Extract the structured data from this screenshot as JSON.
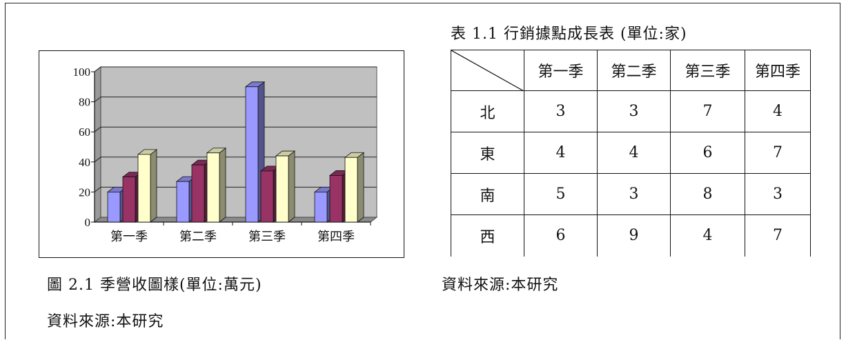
{
  "chart_data": {
    "type": "bar",
    "categories": [
      "第一季",
      "第二季",
      "第三季",
      "第四季"
    ],
    "series": [
      {
        "values": [
          20,
          27,
          90,
          20
        ]
      },
      {
        "values": [
          30,
          38,
          34,
          31
        ]
      },
      {
        "values": [
          45,
          46,
          44,
          43
        ]
      }
    ],
    "yticks": [
      "0",
      "20",
      "40",
      "60",
      "80",
      "100"
    ],
    "ylim": [
      0,
      100
    ],
    "grid": true,
    "three_d": true,
    "colors": [
      "#9999ff",
      "#993366",
      "#ffffcc"
    ],
    "plot_background": "#c0c0c0"
  },
  "figure_caption": "圖 2.1  季營收圖樣(單位:萬元)",
  "figure_source": "資料來源:本研究",
  "table": {
    "title": "表  1.1  行銷據點成長表  (單位:家)",
    "columns": [
      "第一季",
      "第二季",
      "第三季",
      "第四季"
    ],
    "rows": [
      {
        "label": "北",
        "values": [
          "3",
          "3",
          "7",
          "4"
        ]
      },
      {
        "label": "東",
        "values": [
          "4",
          "4",
          "6",
          "7"
        ]
      },
      {
        "label": "南",
        "values": [
          "5",
          "3",
          "8",
          "3"
        ]
      },
      {
        "label": "西",
        "values": [
          "6",
          "9",
          "4",
          "7"
        ]
      }
    ],
    "source": "資料來源:本研究"
  }
}
